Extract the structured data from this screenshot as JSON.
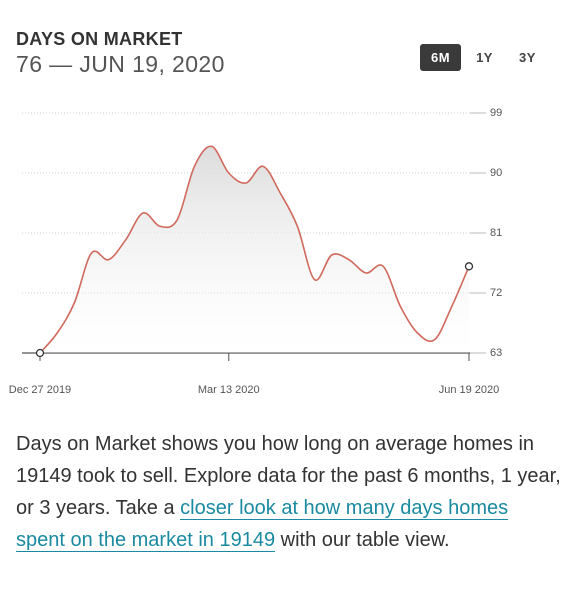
{
  "chart_data": {
    "type": "line",
    "title": "DAYS ON MARKET",
    "subtitle": "76 — JUN 19, 2020",
    "ranges": [
      "6M",
      "1Y",
      "3Y"
    ],
    "selected_range": 0,
    "x": [
      "2019-12-27",
      "2020-01-03",
      "2020-01-10",
      "2020-01-17",
      "2020-01-24",
      "2020-01-31",
      "2020-02-07",
      "2020-02-14",
      "2020-02-21",
      "2020-02-28",
      "2020-03-06",
      "2020-03-13",
      "2020-03-20",
      "2020-03-27",
      "2020-04-03",
      "2020-04-10",
      "2020-04-17",
      "2020-04-24",
      "2020-05-01",
      "2020-05-08",
      "2020-05-15",
      "2020-05-22",
      "2020-05-29",
      "2020-06-05",
      "2020-06-12",
      "2020-06-19"
    ],
    "series": [
      {
        "name": "Days on Market",
        "color": "#d0695c",
        "values": [
          63,
          66,
          70.5,
          78,
          77,
          80,
          84,
          82,
          83,
          91,
          94,
          90,
          88.5,
          91,
          87,
          82,
          74,
          77.7,
          77,
          75,
          76,
          70,
          66,
          65,
          70,
          76
        ]
      }
    ],
    "xlim": [
      "2019-12-27",
      "2020-06-19"
    ],
    "xticks": [
      {
        "value": "2019-12-27",
        "label": "Dec 27 2019"
      },
      {
        "value": "2020-03-13",
        "label": "Mar 13 2020"
      },
      {
        "value": "2020-06-19",
        "label": "Jun 19 2020"
      }
    ],
    "ylim": [
      63,
      99
    ],
    "yticks": [
      63,
      72,
      81,
      90,
      99
    ],
    "grid": true
  },
  "description": {
    "text_before": "Days on Market shows you how long on average homes in 19149 took to sell. Explore data for the past 6 months, 1 year, or 3 years. Take a",
    "link_text": "closer look at how many days homes spent on the market in 19149",
    "text_after": "with our table view."
  }
}
